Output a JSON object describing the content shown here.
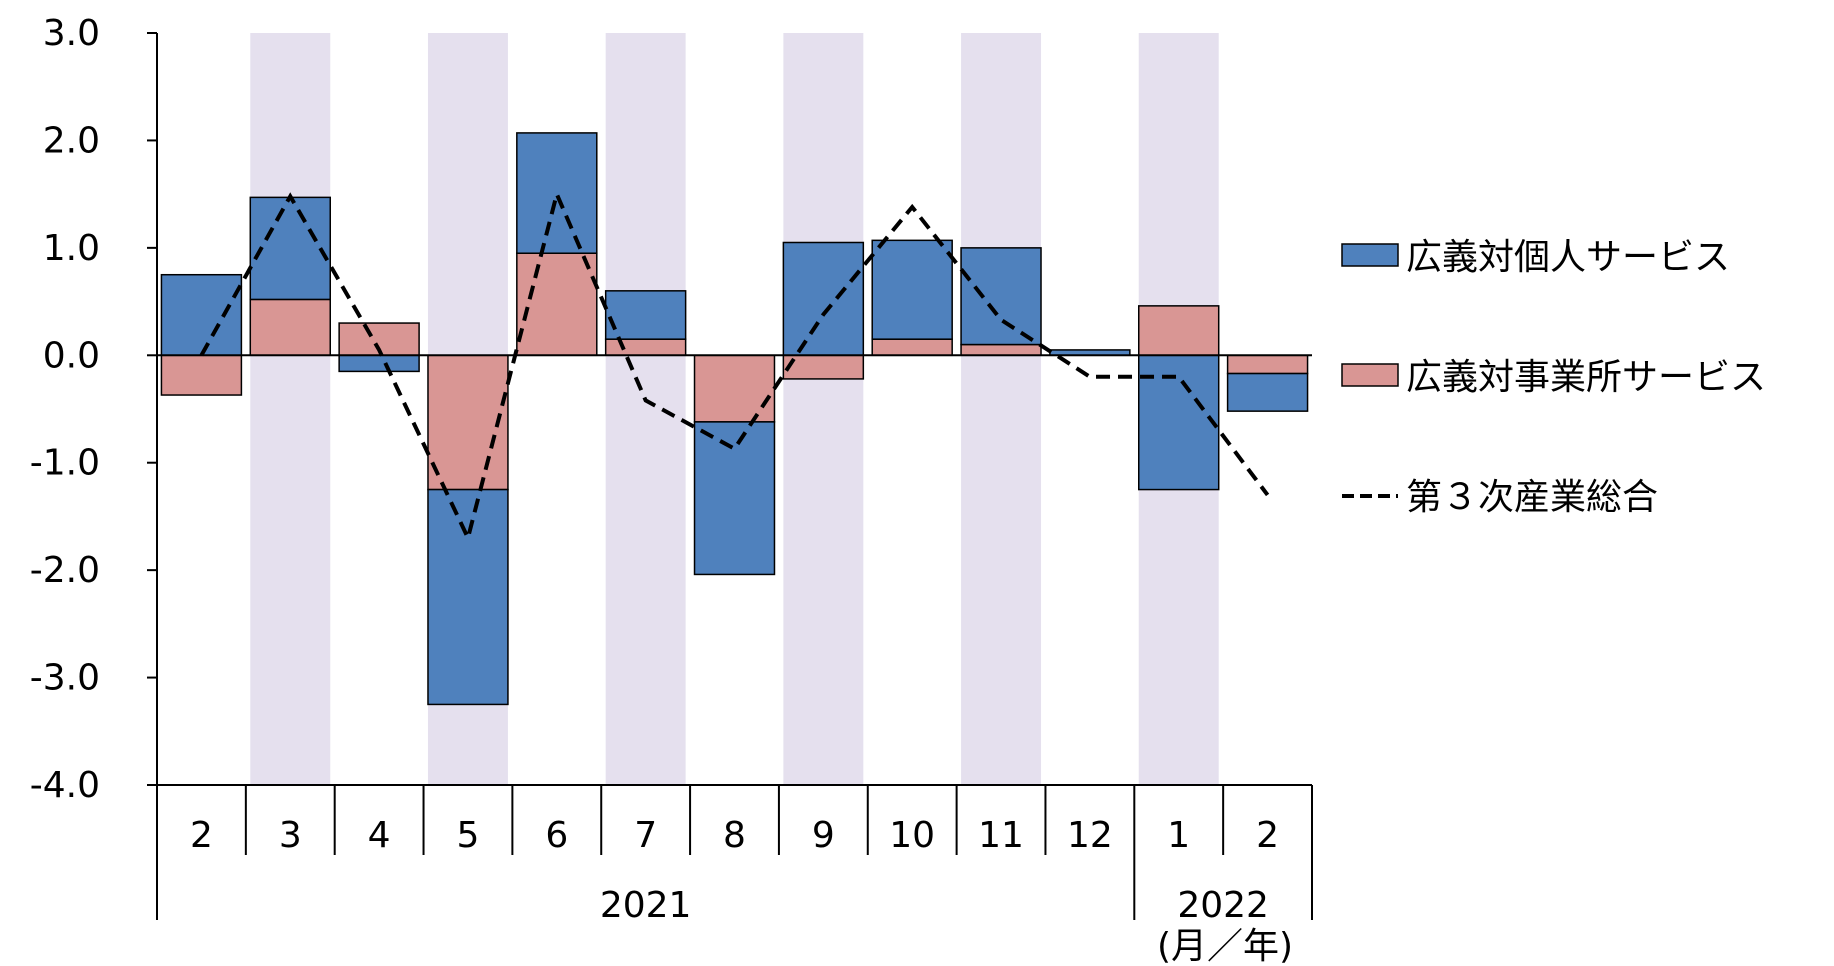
{
  "chart_data": {
    "type": "bar",
    "stacked": true,
    "categories": [
      "2",
      "3",
      "4",
      "5",
      "6",
      "7",
      "8",
      "9",
      "10",
      "11",
      "12",
      "1",
      "2"
    ],
    "year_labels": [
      {
        "label": "2021",
        "from": 0,
        "to": 10
      },
      {
        "label": "2022",
        "from": 11,
        "to": 12
      }
    ],
    "x_unit_label": "(月／年)",
    "y_ticks": [
      "3.0",
      "2.0",
      "1.0",
      "0.0",
      "-1.0",
      "-2.0",
      "-3.0",
      "-4.0"
    ],
    "ylim": [
      -4.0,
      3.0
    ],
    "shaded_categories": [
      1,
      3,
      5,
      7,
      9,
      11
    ],
    "series": [
      {
        "name": "広義対個人サービス",
        "kind": "bar",
        "color": "#4f81bd",
        "values": [
          0.75,
          0.95,
          -0.15,
          -2.0,
          1.12,
          0.45,
          -1.42,
          1.05,
          0.92,
          0.9,
          0.05,
          -1.25,
          -0.35
        ]
      },
      {
        "name": "広義対事業所サービス",
        "kind": "bar",
        "color": "#d99694",
        "values": [
          -0.37,
          0.52,
          0.3,
          -1.25,
          0.95,
          0.15,
          -0.62,
          -0.22,
          0.15,
          0.1,
          0.0,
          0.46,
          -0.17
        ]
      },
      {
        "name": "第３次産業総合",
        "kind": "line",
        "style": "dashed",
        "color": "#000000",
        "values": [
          0.0,
          1.48,
          0.05,
          -1.7,
          1.5,
          -0.42,
          -0.87,
          0.38,
          1.38,
          0.33,
          -0.2,
          -0.2,
          -1.3
        ]
      }
    ]
  }
}
